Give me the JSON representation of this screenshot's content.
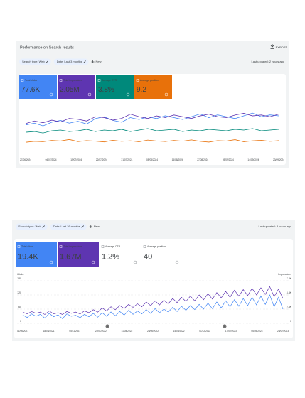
{
  "panel1": {
    "title": "Performance on Search results",
    "export": "EXPORT",
    "chips": [
      "Search type: Web",
      "Date: Last 3 months"
    ],
    "new": "New",
    "last_updated": "Last updated: 2 hours ago",
    "cards": [
      {
        "label": "Total clicks",
        "value": "77.6K",
        "color": "#4285f4",
        "selected": true
      },
      {
        "label": "Total impressions",
        "value": "2.05M",
        "color": "#5e35b1",
        "selected": true
      },
      {
        "label": "Average CTR",
        "value": "3.8%",
        "color": "#00897b",
        "selected": true
      },
      {
        "label": "Average position",
        "value": "9.2",
        "color": "#e8710a",
        "selected": true
      }
    ],
    "chart": {
      "type": "line",
      "x_labels": [
        "27/06/2024",
        "04/07/2024",
        "15/07/2024",
        "22/07/2024",
        "31/07/2024",
        "08/08/2024",
        "16/08/2024",
        "27/08/2024",
        "05/09/2024",
        "14/09/2024",
        "23/09/2024"
      ],
      "series": [
        {
          "color": "#4285f4",
          "ylim": [
            0,
            1200
          ],
          "values": [
            720,
            760,
            700,
            780,
            820,
            760,
            800,
            740,
            860,
            900,
            820,
            780,
            880,
            840,
            900,
            860,
            920,
            880,
            840,
            900,
            960,
            880,
            940,
            900,
            860,
            920,
            980,
            900,
            940,
            920
          ]
        },
        {
          "color": "#5e35b1",
          "ylim": [
            0,
            32000
          ],
          "values": [
            20000,
            21500,
            20500,
            22000,
            21000,
            23000,
            22500,
            21500,
            24000,
            23500,
            22000,
            23000,
            25500,
            24000,
            23000,
            24500,
            23500,
            25000,
            24000,
            23000,
            24500,
            25500,
            24000,
            23500,
            25000,
            26000,
            24500,
            25000,
            24000,
            25500
          ]
        },
        {
          "color": "#00897b",
          "ylim": [
            0,
            7.5
          ],
          "values": [
            3.5,
            3.6,
            3.4,
            3.7,
            3.8,
            3.6,
            3.7,
            3.9,
            3.6,
            3.8,
            3.7,
            3.9,
            3.6,
            3.8,
            4.0,
            3.7,
            3.8,
            3.9,
            3.6,
            3.8,
            3.7,
            3.9,
            3.8,
            3.7,
            3.9,
            3.8,
            4.0,
            3.7,
            3.8,
            3.9
          ]
        },
        {
          "color": "#e8710a",
          "ylim": [
            0,
            30
          ],
          "values": [
            8.5,
            9.0,
            8.8,
            9.5,
            9.2,
            10.0,
            8.9,
            9.4,
            9.1,
            8.7,
            9.6,
            9.0,
            9.3,
            8.8,
            9.7,
            9.2,
            8.9,
            9.5,
            9.1,
            9.8,
            9.0,
            8.6,
            9.4,
            9.2,
            9.9,
            8.8,
            9.3,
            9.6,
            9.0,
            9.4
          ]
        }
      ]
    }
  },
  "panel2": {
    "chips": [
      "Search type: Web",
      "Date: Last 16 months"
    ],
    "new": "New",
    "last_updated": "Last updated: 3 hours ago",
    "cards": [
      {
        "label": "Total clicks",
        "value": "19.4K",
        "color": "#4285f4",
        "selected": true
      },
      {
        "label": "Total impressions",
        "value": "1.67M",
        "color": "#5e35b1",
        "selected": true
      },
      {
        "label": "Average CTR",
        "value": "1.2%",
        "color": "#00897b",
        "selected": false
      },
      {
        "label": "Average position",
        "value": "40",
        "color": "#e8710a",
        "selected": false
      }
    ],
    "chart": {
      "type": "line",
      "y_label": "Clicks",
      "y2_label": "Impressions",
      "ylim": [
        0,
        180
      ],
      "yticks": [
        0,
        60,
        120,
        180
      ],
      "y2lim": [
        0,
        7200
      ],
      "y2ticks": [
        0,
        {
          "value": 2400,
          "label": "2.4K"
        },
        {
          "value": 4800,
          "label": "4.8K"
        },
        {
          "value": 7200,
          "label": "7.2K"
        }
      ],
      "grid": true,
      "x_labels": [
        "01/06/2021",
        "18/08/2021",
        "05/11/2021",
        "22/01/2022",
        "11/04/2022",
        "28/06/2022",
        "14/09/2022",
        "01/12/2022",
        "17/02/2023",
        "06/05/2023",
        "23/07/2023"
      ],
      "annotations": [
        "1",
        "1"
      ],
      "series": [
        {
          "color": "#4285f4",
          "values": [
            35,
            25,
            40,
            30,
            38,
            22,
            42,
            28,
            36,
            20,
            40,
            30,
            34,
            24,
            38,
            28,
            42,
            26,
            45,
            30,
            48,
            32,
            50,
            35,
            55,
            38,
            52,
            40,
            58,
            42,
            62,
            45,
            60,
            48,
            68,
            50,
            72,
            55,
            75,
            58,
            80,
            60,
            85,
            62,
            90,
            65,
            95,
            70,
            100,
            72,
            105,
            75,
            110,
            78,
            115,
            80,
            120,
            70,
            110,
            60
          ]
        },
        {
          "color": "#5e35b1",
          "axis": "y2",
          "values": [
            1900,
            1600,
            2000,
            1700,
            1900,
            1500,
            2100,
            1600,
            1800,
            1500,
            2000,
            1700,
            1900,
            1600,
            2100,
            1800,
            2300,
            1900,
            2600,
            2100,
            2800,
            2300,
            3000,
            2500,
            3200,
            2700,
            3300,
            2800,
            3600,
            3000,
            3800,
            3100,
            3900,
            3300,
            4200,
            3500,
            4400,
            3700,
            4600,
            3800,
            4800,
            4000,
            5000,
            4100,
            5200,
            4300,
            5400,
            4400,
            5600,
            4600,
            5700,
            4700,
            5900,
            4800,
            6000,
            4900,
            6200,
            4500,
            5800,
            4200
          ]
        }
      ]
    }
  }
}
